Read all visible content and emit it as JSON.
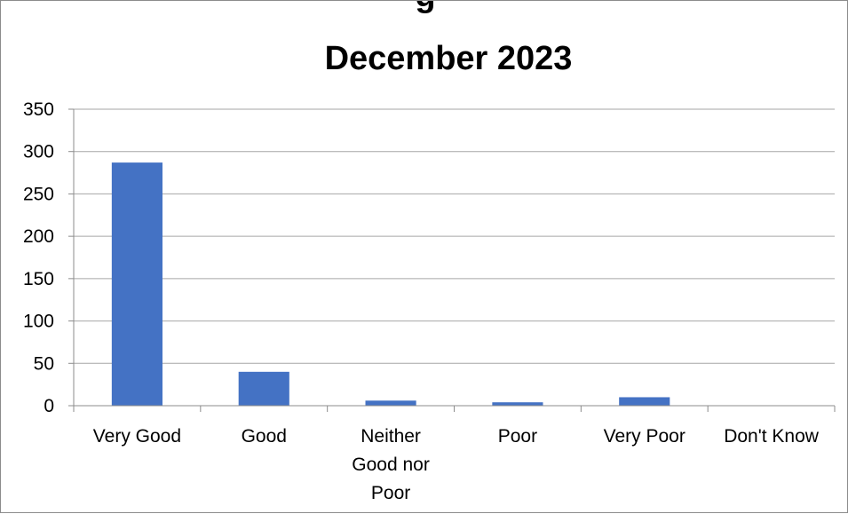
{
  "chart_data": {
    "type": "bar",
    "title": "December  2023",
    "categories": [
      [
        "Very Good"
      ],
      [
        "Good"
      ],
      [
        "Neither",
        "Good nor",
        "Poor"
      ],
      [
        "Poor"
      ],
      [
        "Very Poor"
      ],
      [
        "Don't Know"
      ]
    ],
    "values": [
      287,
      40,
      6,
      4,
      10,
      0
    ],
    "ylim": [
      0,
      350
    ],
    "yticks": [
      0,
      50,
      100,
      150,
      200,
      250,
      300,
      350
    ],
    "grid": true,
    "bar_color": "#4472c4",
    "xlabel": "",
    "ylabel": ""
  }
}
